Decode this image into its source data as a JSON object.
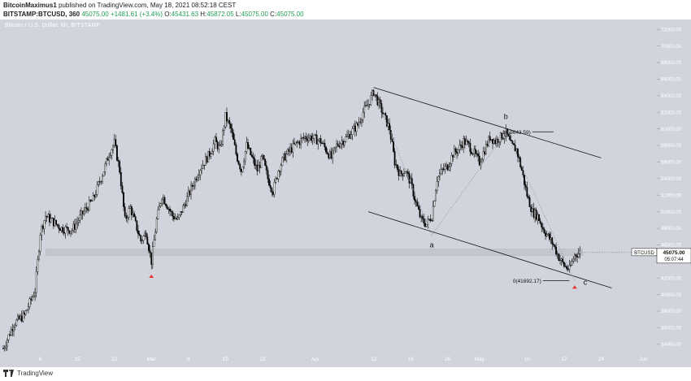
{
  "header": {
    "author": "BitcoinMaximus1",
    "published_text": "published on TradingView.com, May 18, 2021 08:52:18 CEST",
    "symbol_line": "BITSTAMP:BTCUSD, 360",
    "price": "45075.00",
    "change": "+1481.61 (+3.4%)",
    "open_label": "O:",
    "open": "45431.63",
    "high_label": "H:",
    "high": "45872.05",
    "low_label": "L:",
    "low": "45075.00",
    "close_label": "C:",
    "close": "45075.00"
  },
  "legend": "Bitcoin / U.S. Dollar, 6h, BITSTAMP",
  "price_tag": {
    "symbol": "BTCUSD",
    "price": "45075.00",
    "countdown": "05:07:44"
  },
  "annotations": {
    "wave_a": "a",
    "wave_b": "b",
    "wave_c": "c",
    "fib_top": "1(59643.59)",
    "fib_bottom": "0(41692.17)"
  },
  "footer": {
    "brand": "TradingView"
  },
  "colors": {
    "plot_bg": "#d1d4dc",
    "candle": "#000000",
    "support_zone": "#c3c6cf",
    "marker": "#e53935"
  },
  "chart_data": {
    "type": "candlestick",
    "title": "Bitcoin / U.S. Dollar, 6h, BITSTAMP",
    "y_tick_labels": [
      "72000.00",
      "70000.00",
      "68000.00",
      "66000.00",
      "64000.00",
      "62000.00",
      "60000.00",
      "58000.00",
      "56000.00",
      "54000.00",
      "52000.00",
      "50000.00",
      "48000.00",
      "46000.00",
      "44000.00",
      "42000.00",
      "40000.00",
      "38000.00",
      "36000.00",
      "34000.00"
    ],
    "y_ticks": [
      72000,
      70000,
      68000,
      66000,
      64000,
      62000,
      60000,
      58000,
      56000,
      54000,
      52000,
      50000,
      48000,
      46000,
      44000,
      42000,
      40000,
      38000,
      36000,
      34000
    ],
    "ylim": [
      33200,
      73200
    ],
    "x_tick_labels": [
      "8",
      "15",
      "22",
      "Mar",
      "8",
      "15",
      "22",
      "Apr",
      "12",
      "19",
      "26",
      "May",
      "10",
      "17",
      "24",
      "Jun"
    ],
    "x_ticks_day": [
      7,
      14,
      21,
      28,
      35,
      42,
      49,
      59,
      70,
      77,
      84,
      90,
      99,
      106,
      113,
      121
    ],
    "x_day_range": [
      0,
      122
    ],
    "price_path": [
      [
        0,
        33500
      ],
      [
        2,
        36500
      ],
      [
        4,
        37500
      ],
      [
        6,
        40500
      ],
      [
        7,
        47500
      ],
      [
        8,
        49500
      ],
      [
        11,
        48000
      ],
      [
        13,
        47800
      ],
      [
        15,
        49800
      ],
      [
        17,
        51500
      ],
      [
        19,
        55000
      ],
      [
        20,
        57000
      ],
      [
        21,
        58300
      ],
      [
        22,
        55000
      ],
      [
        23,
        49000
      ],
      [
        24,
        50500
      ],
      [
        26,
        46500
      ],
      [
        27,
        47500
      ],
      [
        28,
        44000
      ],
      [
        29,
        49000
      ],
      [
        30,
        52000
      ],
      [
        32,
        49500
      ],
      [
        33,
        49000
      ],
      [
        35,
        52000
      ],
      [
        37,
        55000
      ],
      [
        39,
        57000
      ],
      [
        40,
        58500
      ],
      [
        41,
        57500
      ],
      [
        42,
        61500
      ],
      [
        43,
        60000
      ],
      [
        44,
        57000
      ],
      [
        45,
        55000
      ],
      [
        46,
        58000
      ],
      [
        47,
        56500
      ],
      [
        48,
        55000
      ],
      [
        49,
        56500
      ],
      [
        50,
        54000
      ],
      [
        51,
        52500
      ],
      [
        52,
        55000
      ],
      [
        53,
        56500
      ],
      [
        55,
        58000
      ],
      [
        57,
        59000
      ],
      [
        58,
        59000
      ],
      [
        60,
        58500
      ],
      [
        61,
        57500
      ],
      [
        62,
        56500
      ],
      [
        63,
        58000
      ],
      [
        65,
        59000
      ],
      [
        67,
        60500
      ],
      [
        68,
        62000
      ],
      [
        69,
        63000
      ],
      [
        70,
        64500
      ],
      [
        71,
        63000
      ],
      [
        72,
        61500
      ],
      [
        73,
        60000
      ],
      [
        74,
        56000
      ],
      [
        75,
        54500
      ],
      [
        76,
        55000
      ],
      [
        77,
        53500
      ],
      [
        78,
        51000
      ],
      [
        79,
        49000
      ],
      [
        80,
        48500
      ],
      [
        81,
        49500
      ],
      [
        82,
        54000
      ],
      [
        83,
        55000
      ],
      [
        84,
        55500
      ],
      [
        85,
        57000
      ],
      [
        86,
        57500
      ],
      [
        87,
        58500
      ],
      [
        88,
        58000
      ],
      [
        89,
        57000
      ],
      [
        90,
        56000
      ],
      [
        91,
        57500
      ],
      [
        92,
        59000
      ],
      [
        93,
        58500
      ],
      [
        94,
        59000
      ],
      [
        95,
        59500
      ],
      [
        96,
        58000
      ],
      [
        97,
        57500
      ],
      [
        98,
        55000
      ],
      [
        99,
        52000
      ],
      [
        100,
        50000
      ],
      [
        101,
        49500
      ],
      [
        102,
        48000
      ],
      [
        103,
        47000
      ],
      [
        104,
        46000
      ],
      [
        105,
        44500
      ],
      [
        106,
        43500
      ],
      [
        107,
        43000
      ],
      [
        108,
        44800
      ],
      [
        109,
        45075
      ]
    ],
    "support_zone": [
      44700,
      45500
    ],
    "low_markers": [
      {
        "day": 28,
        "price": 43000
      },
      {
        "day": 108,
        "price": 41692.17
      }
    ],
    "channel_upper": [
      [
        70,
        65000
      ],
      [
        113,
        56500
      ]
    ],
    "channel_lower": [
      [
        69,
        50000
      ],
      [
        115,
        40800
      ]
    ],
    "fib_levels": [
      {
        "label": "1(59643.59)",
        "price": 59643.59,
        "day_from": 100,
        "day_to": 104
      },
      {
        "label": "0(41692.17)",
        "price": 41692.17,
        "day_from": 102,
        "day_to": 107
      }
    ],
    "wave_path": [
      [
        70,
        64500
      ],
      [
        81,
        47200
      ],
      [
        95,
        59600
      ],
      [
        108,
        41700
      ]
    ],
    "wave_labels": [
      {
        "label": "a",
        "day": 81,
        "price": 45700
      },
      {
        "label": "b",
        "day": 95,
        "price": 61200
      },
      {
        "label": "c",
        "day": 110,
        "price": 41200
      }
    ],
    "last_price": 45075.0
  }
}
